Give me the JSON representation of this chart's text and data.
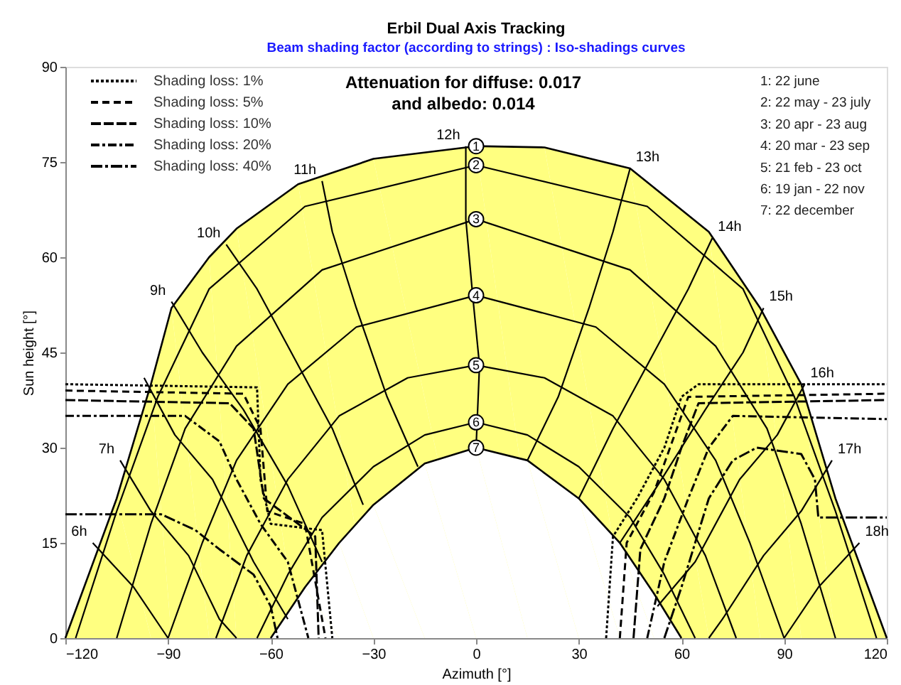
{
  "chart_data": {
    "type": "line",
    "title": "Erbil Dual Axis Tracking",
    "subtitle": "Beam shading factor (according to strings) : Iso-shadings curves",
    "xlabel": "Azimuth [°]",
    "ylabel": "Sun height [°]",
    "xlim": [
      -120,
      120
    ],
    "xticks": [
      -120,
      -90,
      -60,
      -30,
      0,
      30,
      60,
      90,
      120
    ],
    "ylim": [
      0,
      90
    ],
    "yticks": [
      0,
      15,
      30,
      45,
      60,
      75,
      90
    ],
    "grid": false,
    "legend": "top left",
    "marker": "none",
    "annotations": [
      "Attenuation for diffuse: 0.017\nand albedo: 0.014",
      "1: 22 june",
      "2: 22 may - 23 july",
      "3: 20 apr - 23 aug",
      "4: 20 mar - 23 sep",
      "5: 21 feb - 23 oct",
      "6: 19 jan - 22 nov",
      "7: 22 december",
      {
        "text": "6h",
        "x": -112,
        "y": 15
      },
      {
        "text": "7h",
        "x": -104,
        "y": 28
      },
      {
        "text": "9h",
        "x": -89,
        "y": 53
      },
      {
        "text": "10h",
        "x": -73,
        "y": 62
      },
      {
        "text": "11h",
        "x": -45,
        "y": 72
      },
      {
        "text": "12h",
        "x": -3,
        "y": 77.5
      },
      {
        "text": "13h",
        "x": 45,
        "y": 74
      },
      {
        "text": "14h",
        "x": 69,
        "y": 63
      },
      {
        "text": "15h",
        "x": 84,
        "y": 52
      },
      {
        "text": "16h",
        "x": 96,
        "y": 40
      },
      {
        "text": "17h",
        "x": 104,
        "y": 28
      },
      {
        "text": "18h",
        "x": 112,
        "y": 15
      }
    ],
    "series": [
      {
        "name": "1",
        "type": "area",
        "color": "#ffff80",
        "x": [
          -120,
          -105,
          -95,
          -89,
          -78,
          -70,
          -52,
          -30,
          0,
          20,
          45,
          68,
          83,
          95,
          105,
          120
        ],
        "values": [
          0,
          22,
          40,
          52,
          60,
          64.5,
          71.5,
          75.5,
          77.5,
          77.3,
          74,
          64,
          52,
          40,
          22,
          0
        ]
      },
      {
        "name": "7",
        "type": "area",
        "color": "#ffffff",
        "x": [
          -60,
          -50,
          -40,
          -30,
          -15,
          0,
          15,
          30,
          42,
          52,
          60
        ],
        "values": [
          0,
          8,
          15,
          21,
          27.5,
          30,
          28,
          22,
          15,
          7,
          0
        ]
      },
      {
        "name": "2",
        "color": "#000000",
        "x": [
          -117,
          -105,
          -93,
          -78,
          -50,
          0,
          50,
          78,
          93,
          105,
          117
        ],
        "values": [
          0,
          20,
          38,
          55,
          68,
          74.5,
          68,
          55,
          38,
          20,
          0
        ]
      },
      {
        "name": "3",
        "color": "#000000",
        "x": [
          -105,
          -95,
          -85,
          -70,
          -45,
          0,
          45,
          70,
          85,
          95,
          105
        ],
        "values": [
          0,
          18,
          33,
          46,
          58,
          66,
          58,
          46,
          33,
          18,
          0
        ]
      },
      {
        "name": "4",
        "color": "#000000",
        "x": [
          -90,
          -80,
          -70,
          -55,
          -35,
          0,
          35,
          55,
          70,
          80,
          90
        ],
        "values": [
          0,
          15,
          28,
          40,
          49,
          54,
          49,
          40,
          28,
          15,
          0
        ]
      },
      {
        "name": "5",
        "color": "#000000",
        "x": [
          -76,
          -67,
          -55,
          -40,
          -20,
          0,
          20,
          40,
          55,
          67,
          76
        ],
        "values": [
          0,
          13,
          25,
          35,
          41,
          43,
          41,
          35,
          25,
          13,
          0
        ]
      },
      {
        "name": "6",
        "color": "#000000",
        "x": [
          -64,
          -55,
          -45,
          -30,
          -15,
          0,
          15,
          30,
          45,
          55,
          64
        ],
        "values": [
          0,
          10,
          19,
          27,
          32,
          34,
          32,
          27,
          19,
          10,
          0
        ]
      },
      {
        "color": "#000000",
        "x": [
          -112,
          -100,
          -90
        ],
        "values": [
          15,
          8,
          0
        ]
      },
      {
        "color": "#000000",
        "x": [
          -104,
          -95,
          -84,
          -75,
          -70
        ],
        "values": [
          28,
          20,
          13,
          3,
          0
        ]
      },
      {
        "color": "#000000",
        "x": [
          -97,
          -88,
          -77,
          -65,
          -55
        ],
        "values": [
          41,
          32,
          25,
          12,
          3
        ]
      },
      {
        "color": "#000000",
        "x": [
          -89,
          -80,
          -68,
          -55,
          -45
        ],
        "values": [
          53,
          45,
          36,
          24,
          12
        ]
      },
      {
        "color": "#000000",
        "x": [
          -73,
          -64,
          -55,
          -42,
          -33
        ],
        "values": [
          62,
          55,
          46,
          33,
          21
        ]
      },
      {
        "color": "#000000",
        "x": [
          -45,
          -42,
          -35,
          -26,
          -17
        ],
        "values": [
          72,
          64,
          52,
          38,
          27
        ]
      },
      {
        "color": "#000000",
        "x": [
          -3,
          -3,
          -1,
          1,
          0
        ],
        "values": [
          77.5,
          66,
          54,
          43,
          30
        ]
      },
      {
        "color": "#000000",
        "x": [
          45,
          40,
          33,
          24,
          15
        ],
        "values": [
          74,
          64,
          52,
          38,
          28
        ]
      },
      {
        "color": "#000000",
        "x": [
          69,
          62,
          53,
          40,
          30
        ],
        "values": [
          63,
          55,
          46,
          33,
          22
        ]
      },
      {
        "color": "#000000",
        "x": [
          84,
          78,
          67,
          53,
          42
        ],
        "values": [
          52,
          45,
          36,
          24,
          15
        ]
      },
      {
        "color": "#000000",
        "x": [
          96,
          88,
          77,
          64,
          53
        ],
        "values": [
          40,
          32,
          25,
          12,
          5
        ]
      },
      {
        "color": "#000000",
        "x": [
          104,
          95,
          84,
          72,
          68
        ],
        "values": [
          28,
          20,
          13,
          3,
          0
        ]
      },
      {
        "color": "#000000",
        "x": [
          112,
          100,
          90
        ],
        "values": [
          15,
          8,
          0
        ]
      },
      {
        "name": "Shading loss: 1%",
        "color": "#000000",
        "line_style": "dotted",
        "x": [
          -120,
          -64,
          -63,
          -60,
          -45,
          -42,
          null,
          38,
          40,
          47,
          55,
          60,
          65,
          120
        ],
        "values": [
          40,
          39.5,
          25,
          18,
          17,
          0,
          null,
          0,
          16,
          22,
          30,
          38,
          40,
          40
        ]
      },
      {
        "name": "Shading loss: 5%",
        "color": "#000000",
        "line_style": "dashed",
        "x": [
          -120,
          -68,
          -63,
          -61,
          -50,
          -44,
          null,
          42,
          44,
          52,
          58,
          62,
          120
        ],
        "values": [
          39,
          38.5,
          33,
          20,
          18,
          0,
          null,
          0,
          15,
          23,
          32,
          38,
          38.5
        ]
      },
      {
        "name": "Shading loss: 10%",
        "color": "#000000",
        "line_style": "dashed",
        "x": [
          -120,
          -72,
          -65,
          -62,
          -47,
          -46,
          null,
          46,
          48,
          55,
          60,
          65,
          120
        ],
        "values": [
          37.5,
          37,
          33,
          22,
          16,
          0,
          null,
          0,
          14,
          22,
          30,
          37,
          37.5
        ]
      },
      {
        "name": "Shading loss: 20%",
        "color": "#000000",
        "line_style": "dashed",
        "x": [
          -120,
          -85,
          -75,
          -70,
          -63,
          -55,
          -49,
          null,
          50,
          55,
          62,
          68,
          75,
          120
        ],
        "values": [
          35,
          35,
          31,
          25,
          18,
          12,
          0,
          null,
          0,
          12,
          22,
          30,
          35,
          34.5
        ]
      },
      {
        "name": "Shading loss: 40%",
        "color": "#000000",
        "line_style": "dashed",
        "x": [
          -120,
          -92,
          -82,
          -75,
          -65,
          -60,
          -58,
          null,
          55,
          60,
          68,
          75,
          82,
          95,
          99,
          100,
          120
        ],
        "values": [
          19.5,
          19.5,
          17,
          14,
          10,
          5,
          0,
          null,
          0,
          8,
          22,
          28,
          30,
          29,
          25,
          19,
          19
        ]
      }
    ]
  }
}
